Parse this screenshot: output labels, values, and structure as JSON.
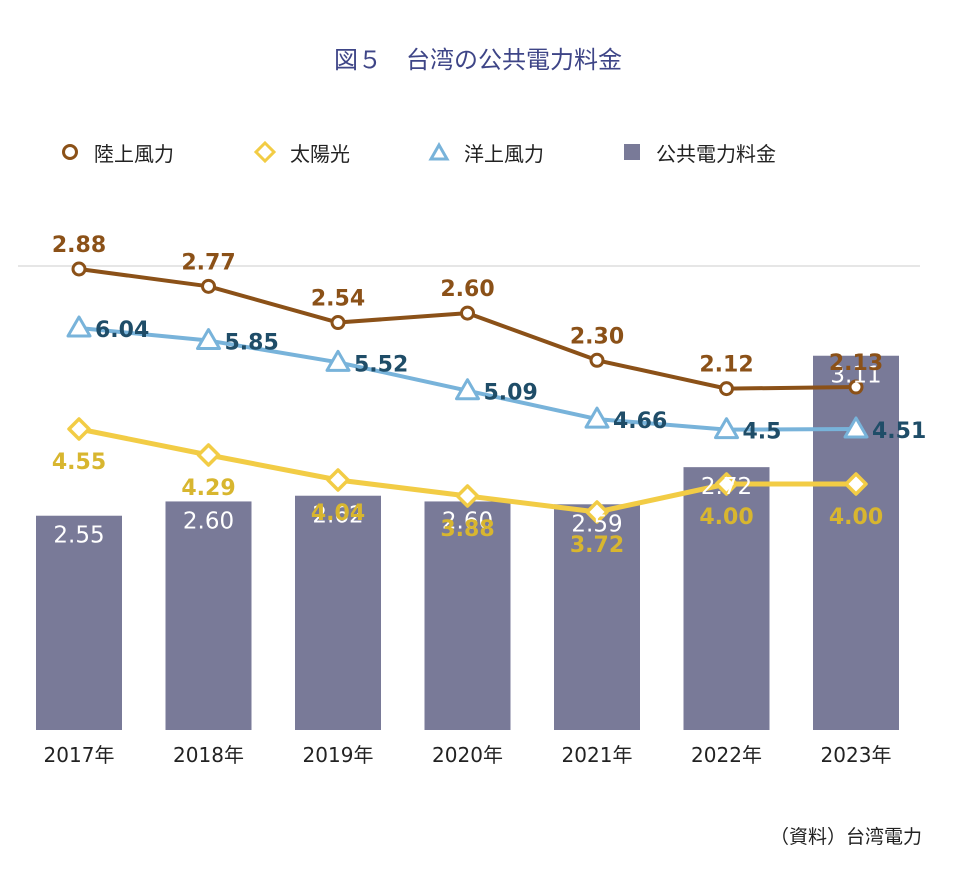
{
  "title": "図５　台湾の公共電力料金",
  "source": "（資料）台湾電力",
  "legend": {
    "onshore": "陸上風力",
    "solar": "太陽光",
    "offshore": "洋上風力",
    "tariff": "公共電力料金"
  },
  "colors": {
    "onshore": "#8b5118",
    "solar": "#f2cc45",
    "offshore": "#78b3da",
    "offshore_label": "#1f4d68",
    "solar_label": "#d8b62f",
    "bar": "#797a98",
    "title": "#3e4587"
  },
  "chart_data": {
    "type": "bar",
    "categories": [
      "2017年",
      "2018年",
      "2019年",
      "2020年",
      "2021年",
      "2022年",
      "2023年"
    ],
    "bars": {
      "name": "公共電力料金",
      "values": [
        2.55,
        2.6,
        2.62,
        2.6,
        2.59,
        2.72,
        3.11
      ],
      "labels": [
        "2.55",
        "2.60",
        "2.62",
        "2.60",
        "2.59",
        "2.72",
        "3.11"
      ]
    },
    "lines": [
      {
        "name": "陸上風力",
        "marker": "circle",
        "values": [
          2.88,
          2.77,
          2.54,
          2.6,
          2.3,
          2.12,
          2.13
        ],
        "labels": [
          "2.88",
          "2.77",
          "2.54",
          "2.60",
          "2.30",
          "2.12",
          "2.13"
        ]
      },
      {
        "name": "洋上風力",
        "marker": "triangle",
        "values": [
          6.04,
          5.85,
          5.52,
          5.09,
          4.66,
          4.5,
          4.51
        ],
        "labels": [
          "6.04",
          "5.85",
          "5.52",
          "5.09",
          "4.66",
          "4.5",
          "4.51"
        ]
      },
      {
        "name": "太陽光",
        "marker": "diamond",
        "values": [
          4.55,
          4.29,
          4.04,
          3.88,
          3.72,
          4.0,
          4.0
        ],
        "labels": [
          "4.55",
          "4.29",
          "4.04",
          "3.88",
          "3.72",
          "4.00",
          "4.00"
        ]
      }
    ],
    "grid": false
  }
}
